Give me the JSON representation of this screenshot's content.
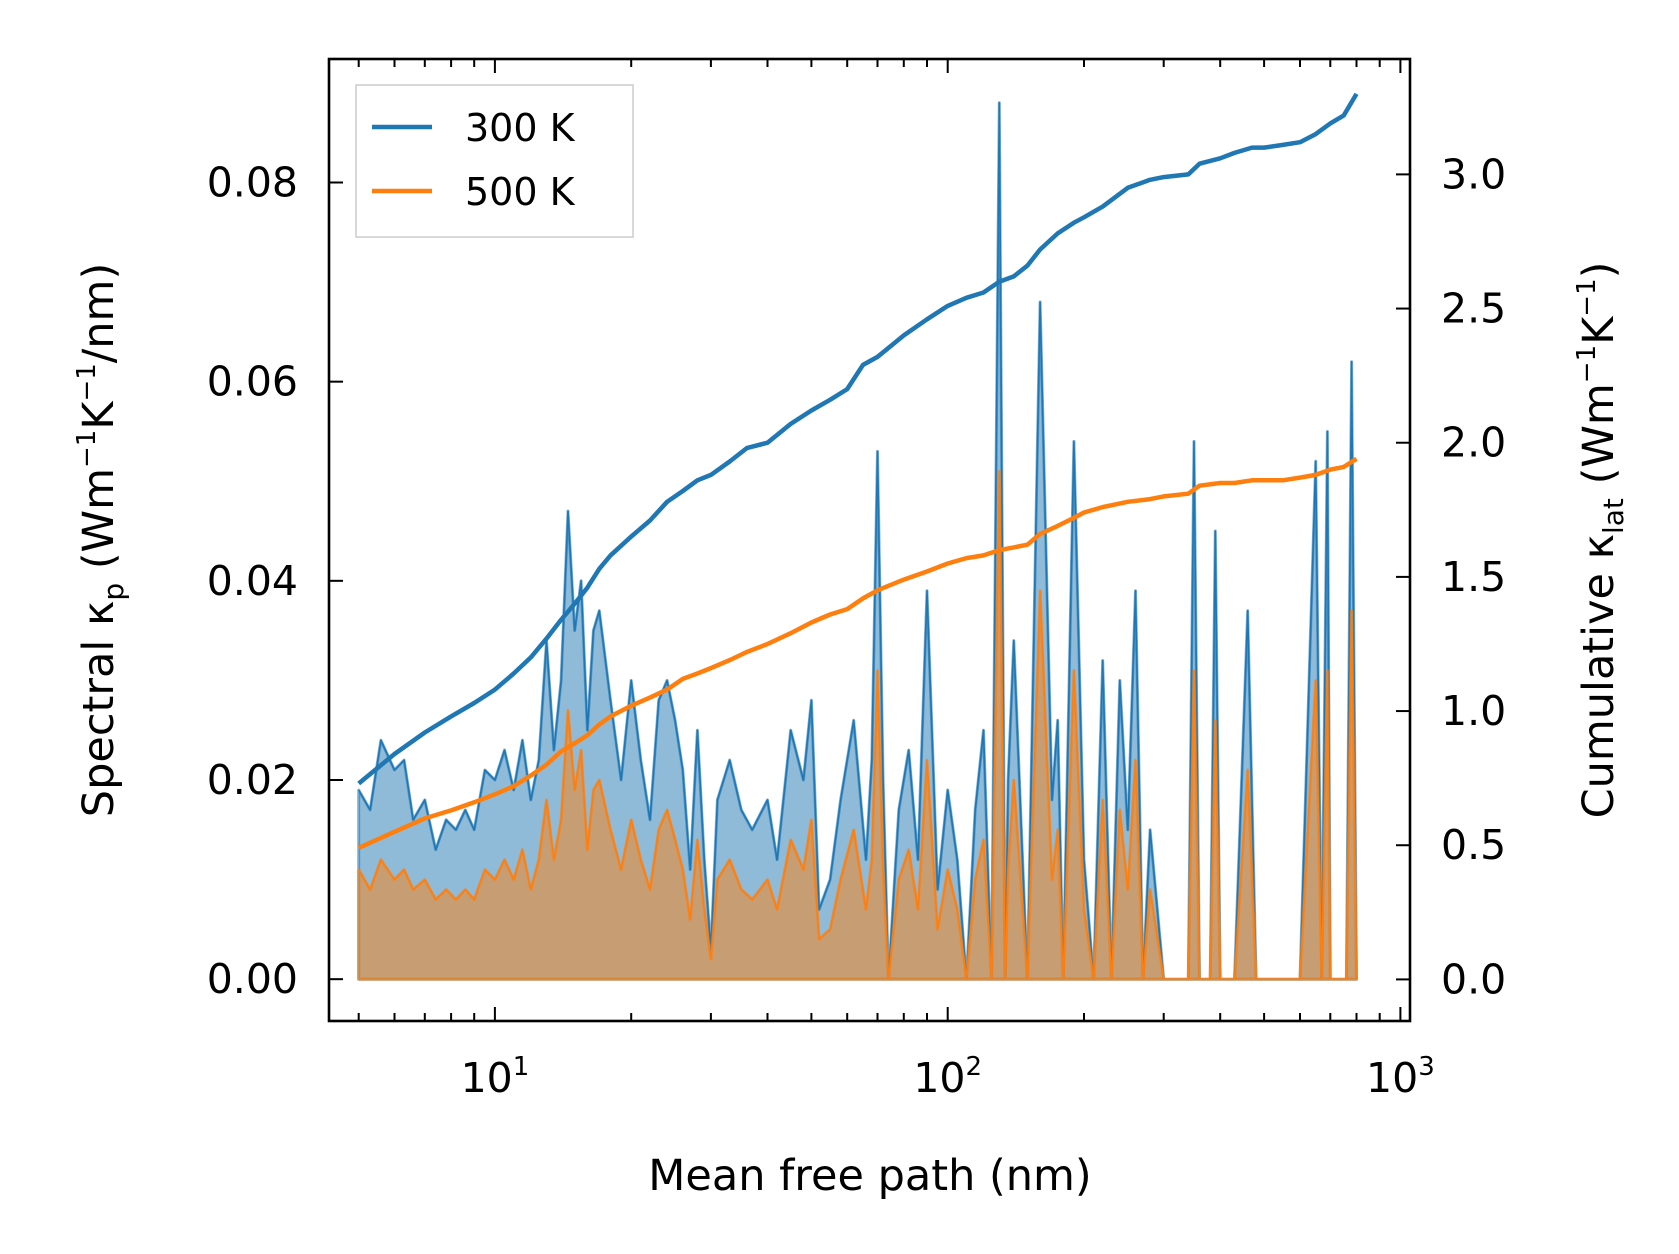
{
  "chart_data": {
    "type": "line",
    "xlabel": "Mean free path (nm)",
    "xscale": "log",
    "xlim": [
      4.3,
      1050
    ],
    "xticks": [
      {
        "value": 10,
        "base": "10",
        "exp": "1"
      },
      {
        "value": 100,
        "base": "10",
        "exp": "2"
      },
      {
        "value": 1000,
        "base": "10",
        "exp": "3"
      }
    ],
    "ylabel_left": {
      "prefix": "Spectral κ",
      "sub": "p",
      "units": " (Wm",
      "sup1": "−1",
      "mid": "K",
      "sup2": "−1",
      "end": "/nm)"
    },
    "ylabel_right": {
      "prefix": "Cumulative κ",
      "sub": "lat",
      "units": " (Wm",
      "sup1": "−1",
      "mid": "K",
      "sup2": "−1",
      "end": ")"
    },
    "ylim_left": [
      -0.0042,
      0.0924
    ],
    "ylim_right": [
      -0.155,
      3.43
    ],
    "yticks_left": [
      "0.00",
      "0.02",
      "0.04",
      "0.06",
      "0.08"
    ],
    "yticks_right": [
      "0.0",
      "0.5",
      "1.0",
      "1.5",
      "2.0",
      "2.5",
      "3.0"
    ],
    "legend": {
      "position": "upper-left",
      "entries": [
        "300 K",
        "500 K"
      ]
    },
    "colors": {
      "300K": "#1f77b4",
      "500K": "#ff7f0e"
    },
    "spectral": {
      "x": [
        5,
        5.3,
        5.6,
        6,
        6.3,
        6.6,
        7,
        7.4,
        7.8,
        8.2,
        8.6,
        9,
        9.5,
        10,
        10.5,
        11,
        11.5,
        12,
        12.5,
        13,
        13.5,
        14,
        14.5,
        15,
        15.5,
        16,
        16.5,
        17,
        18,
        19,
        20,
        21,
        22,
        23,
        24,
        25,
        26,
        27,
        28,
        29,
        30,
        31,
        33,
        35,
        37,
        40,
        42,
        45,
        48,
        50,
        52,
        55,
        58,
        62,
        66,
        68,
        70,
        72,
        74,
        78,
        82,
        86,
        90,
        95,
        100,
        105,
        110,
        115,
        120,
        125,
        130,
        134,
        136,
        140,
        150,
        160,
        170,
        175,
        180,
        190,
        200,
        210,
        220,
        230,
        240,
        250,
        260,
        270,
        280,
        300,
        320,
        340,
        350,
        360,
        380,
        390,
        400,
        430,
        460,
        480,
        500,
        550,
        600,
        650,
        670,
        690,
        700,
        720,
        740,
        760,
        780,
        800
      ],
      "y300": [
        0.019,
        0.017,
        0.024,
        0.021,
        0.022,
        0.016,
        0.018,
        0.013,
        0.016,
        0.015,
        0.017,
        0.015,
        0.021,
        0.02,
        0.023,
        0.019,
        0.024,
        0.018,
        0.022,
        0.034,
        0.023,
        0.03,
        0.047,
        0.035,
        0.04,
        0.025,
        0.035,
        0.037,
        0.028,
        0.02,
        0.03,
        0.022,
        0.016,
        0.028,
        0.03,
        0.026,
        0.021,
        0.011,
        0.025,
        0.012,
        0.003,
        0.018,
        0.022,
        0.017,
        0.015,
        0.018,
        0.012,
        0.025,
        0.02,
        0.028,
        0.007,
        0.01,
        0.018,
        0.026,
        0.012,
        0.022,
        0.053,
        0.02,
        0.0,
        0.017,
        0.023,
        0.012,
        0.039,
        0.009,
        0.019,
        0.012,
        0.0,
        0.017,
        0.025,
        0.0,
        0.088,
        0.0,
        0.02,
        0.034,
        0.0,
        0.068,
        0.018,
        0.026,
        0.0,
        0.054,
        0.012,
        0.0,
        0.032,
        0.0,
        0.03,
        0.015,
        0.039,
        0.0,
        0.015,
        0.0,
        0.0,
        0.0,
        0.054,
        0.0,
        0.0,
        0.045,
        0.0,
        0.0,
        0.037,
        0.0,
        0.0,
        0.0,
        0.0,
        0.052,
        0.0,
        0.055,
        0.0,
        0.0,
        0.0,
        0.0,
        0.062,
        0.0
      ],
      "y500": [
        0.011,
        0.009,
        0.012,
        0.01,
        0.011,
        0.009,
        0.01,
        0.008,
        0.009,
        0.008,
        0.009,
        0.008,
        0.011,
        0.01,
        0.012,
        0.01,
        0.013,
        0.009,
        0.012,
        0.018,
        0.012,
        0.016,
        0.027,
        0.019,
        0.023,
        0.013,
        0.019,
        0.02,
        0.015,
        0.011,
        0.016,
        0.012,
        0.009,
        0.015,
        0.017,
        0.014,
        0.011,
        0.006,
        0.014,
        0.007,
        0.002,
        0.01,
        0.012,
        0.009,
        0.008,
        0.01,
        0.007,
        0.014,
        0.011,
        0.016,
        0.004,
        0.005,
        0.01,
        0.015,
        0.007,
        0.012,
        0.031,
        0.011,
        0.0,
        0.01,
        0.013,
        0.007,
        0.022,
        0.005,
        0.011,
        0.007,
        0.0,
        0.01,
        0.014,
        0.0,
        0.051,
        0.0,
        0.011,
        0.02,
        0.0,
        0.039,
        0.01,
        0.015,
        0.0,
        0.031,
        0.007,
        0.0,
        0.018,
        0.0,
        0.017,
        0.009,
        0.022,
        0.0,
        0.009,
        0.0,
        0.0,
        0.0,
        0.031,
        0.0,
        0.0,
        0.026,
        0.0,
        0.0,
        0.021,
        0.0,
        0.0,
        0.0,
        0.0,
        0.03,
        0.0,
        0.031,
        0.0,
        0.0,
        0.0,
        0.0,
        0.037,
        0.0
      ]
    },
    "cumulative": {
      "x300": [
        5,
        6,
        7,
        8,
        9,
        10,
        11,
        12,
        13,
        14,
        15,
        16,
        17,
        18,
        20,
        22,
        24,
        26,
        28,
        30,
        33,
        36,
        40,
        45,
        50,
        55,
        60,
        65,
        70,
        80,
        90,
        100,
        110,
        120,
        130,
        140,
        150,
        160,
        175,
        190,
        200,
        220,
        250,
        280,
        300,
        340,
        360,
        400,
        430,
        470,
        500,
        550,
        600,
        650,
        700,
        750,
        800
      ],
      "y300": [
        0.73,
        0.84,
        0.92,
        0.98,
        1.03,
        1.08,
        1.14,
        1.2,
        1.27,
        1.34,
        1.4,
        1.46,
        1.53,
        1.58,
        1.65,
        1.71,
        1.78,
        1.82,
        1.86,
        1.88,
        1.93,
        1.98,
        2.0,
        2.07,
        2.12,
        2.16,
        2.2,
        2.29,
        2.32,
        2.4,
        2.46,
        2.51,
        2.54,
        2.56,
        2.6,
        2.62,
        2.66,
        2.72,
        2.78,
        2.82,
        2.84,
        2.88,
        2.95,
        2.98,
        2.99,
        3.0,
        3.04,
        3.06,
        3.08,
        3.1,
        3.1,
        3.11,
        3.12,
        3.15,
        3.19,
        3.22,
        3.3
      ],
      "x500": [
        5,
        6,
        7,
        8,
        9,
        10,
        11,
        12,
        13,
        14,
        15,
        16,
        17,
        18,
        20,
        22,
        24,
        26,
        28,
        30,
        33,
        36,
        40,
        45,
        50,
        55,
        60,
        65,
        70,
        80,
        90,
        100,
        110,
        120,
        130,
        140,
        150,
        160,
        175,
        190,
        200,
        220,
        250,
        280,
        300,
        340,
        360,
        400,
        430,
        470,
        500,
        550,
        600,
        650,
        700,
        750,
        800
      ],
      "y500": [
        0.49,
        0.55,
        0.6,
        0.63,
        0.66,
        0.69,
        0.72,
        0.76,
        0.8,
        0.85,
        0.88,
        0.91,
        0.95,
        0.98,
        1.02,
        1.05,
        1.08,
        1.12,
        1.14,
        1.16,
        1.19,
        1.22,
        1.25,
        1.29,
        1.33,
        1.36,
        1.38,
        1.42,
        1.45,
        1.49,
        1.52,
        1.55,
        1.57,
        1.58,
        1.6,
        1.61,
        1.62,
        1.66,
        1.69,
        1.72,
        1.74,
        1.76,
        1.78,
        1.79,
        1.8,
        1.81,
        1.84,
        1.85,
        1.85,
        1.86,
        1.86,
        1.86,
        1.87,
        1.88,
        1.9,
        1.91,
        1.94
      ]
    }
  }
}
